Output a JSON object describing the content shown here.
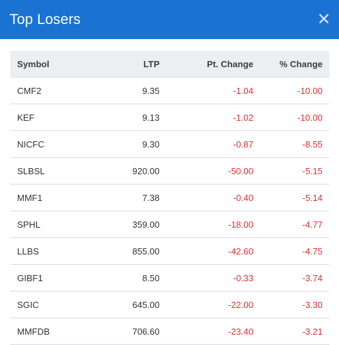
{
  "header": {
    "title": "Top Losers",
    "close_glyph": "✕",
    "close_icon": "close-icon"
  },
  "colors": {
    "header_bg": "#1a73d3",
    "negative": "#e03131"
  },
  "table": {
    "columns": [
      "Symbol",
      "LTP",
      "Pt. Change",
      "% Change"
    ],
    "rows": [
      {
        "symbol": "CMF2",
        "ltp": "9.35",
        "pt_change": "-1.04",
        "pct_change": "-10.00"
      },
      {
        "symbol": "KEF",
        "ltp": "9.13",
        "pt_change": "-1.02",
        "pct_change": "-10.00"
      },
      {
        "symbol": "NICFC",
        "ltp": "9.30",
        "pt_change": "-0.87",
        "pct_change": "-8.55"
      },
      {
        "symbol": "SLBSL",
        "ltp": "920.00",
        "pt_change": "-50.00",
        "pct_change": "-5.15"
      },
      {
        "symbol": "MMF1",
        "ltp": "7.38",
        "pt_change": "-0.40",
        "pct_change": "-5.14"
      },
      {
        "symbol": "SPHL",
        "ltp": "359.00",
        "pt_change": "-18.00",
        "pct_change": "-4.77"
      },
      {
        "symbol": "LLBS",
        "ltp": "855.00",
        "pt_change": "-42.60",
        "pct_change": "-4.75"
      },
      {
        "symbol": "GIBF1",
        "ltp": "8.50",
        "pt_change": "-0.33",
        "pct_change": "-3.74"
      },
      {
        "symbol": "SGIC",
        "ltp": "645.00",
        "pt_change": "-22.00",
        "pct_change": "-3.30"
      },
      {
        "symbol": "MMFDB",
        "ltp": "706.60",
        "pt_change": "-23.40",
        "pct_change": "-3.21"
      }
    ]
  }
}
